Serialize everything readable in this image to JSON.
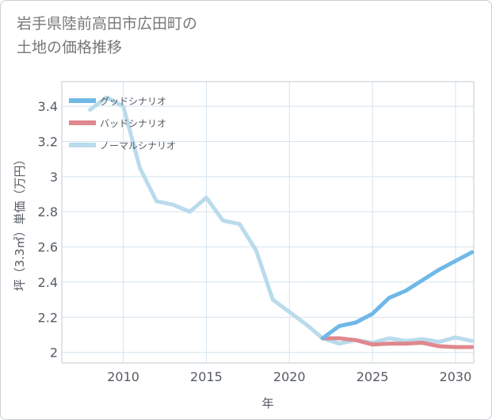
{
  "chart_data": {
    "type": "line",
    "title": "岩手県陸前高田市広田町の\n土地の価格推移",
    "xlabel": "年",
    "ylabel": "坪（3.3㎡）単価（万円）",
    "xlim": [
      2006.3,
      2031.1
    ],
    "ylim": [
      1.94,
      3.54
    ],
    "xticks": [
      2010,
      2015,
      2020,
      2025,
      2030
    ],
    "xtick_labels": [
      "2010",
      "2015",
      "2020",
      "2025",
      "2030"
    ],
    "yticks": [
      2,
      2.2,
      2.4,
      2.6,
      2.8,
      3,
      3.2,
      3.4
    ],
    "ytick_labels": [
      "2",
      "2.2",
      "2.4",
      "2.6",
      "2.8",
      "3",
      "3.2",
      "3.4"
    ],
    "grid": true,
    "legend_position": "top-left",
    "series": [
      {
        "name": "グッドシナリオ",
        "color": "#6fb8e8",
        "x": [
          2022,
          2023,
          2024,
          2025,
          2026,
          2027,
          2028,
          2029,
          2030,
          2031
        ],
        "y": [
          2.08,
          2.15,
          2.17,
          2.22,
          2.31,
          2.35,
          2.41,
          2.47,
          2.52,
          2.57
        ]
      },
      {
        "name": "バッドシナリオ",
        "color": "#e0888f",
        "x": [
          2022,
          2023,
          2024,
          2025,
          2026,
          2027,
          2028,
          2029,
          2030,
          2031
        ],
        "y": [
          2.08,
          2.08,
          2.07,
          2.045,
          2.05,
          2.05,
          2.055,
          2.035,
          2.03,
          2.03
        ]
      },
      {
        "name": "ノーマルシナリオ",
        "color": "#b9dbec",
        "x": [
          2008,
          2009,
          2010,
          2011,
          2012,
          2013,
          2014,
          2015,
          2016,
          2017,
          2018,
          2019,
          2020,
          2021,
          2022,
          2023,
          2024,
          2025,
          2026,
          2027,
          2028,
          2029,
          2030,
          2031
        ],
        "y": [
          3.38,
          3.45,
          3.4,
          3.05,
          2.86,
          2.84,
          2.8,
          2.88,
          2.75,
          2.73,
          2.58,
          2.3,
          2.23,
          2.16,
          2.08,
          2.05,
          2.07,
          2.055,
          2.08,
          2.065,
          2.075,
          2.06,
          2.085,
          2.065
        ]
      }
    ]
  }
}
